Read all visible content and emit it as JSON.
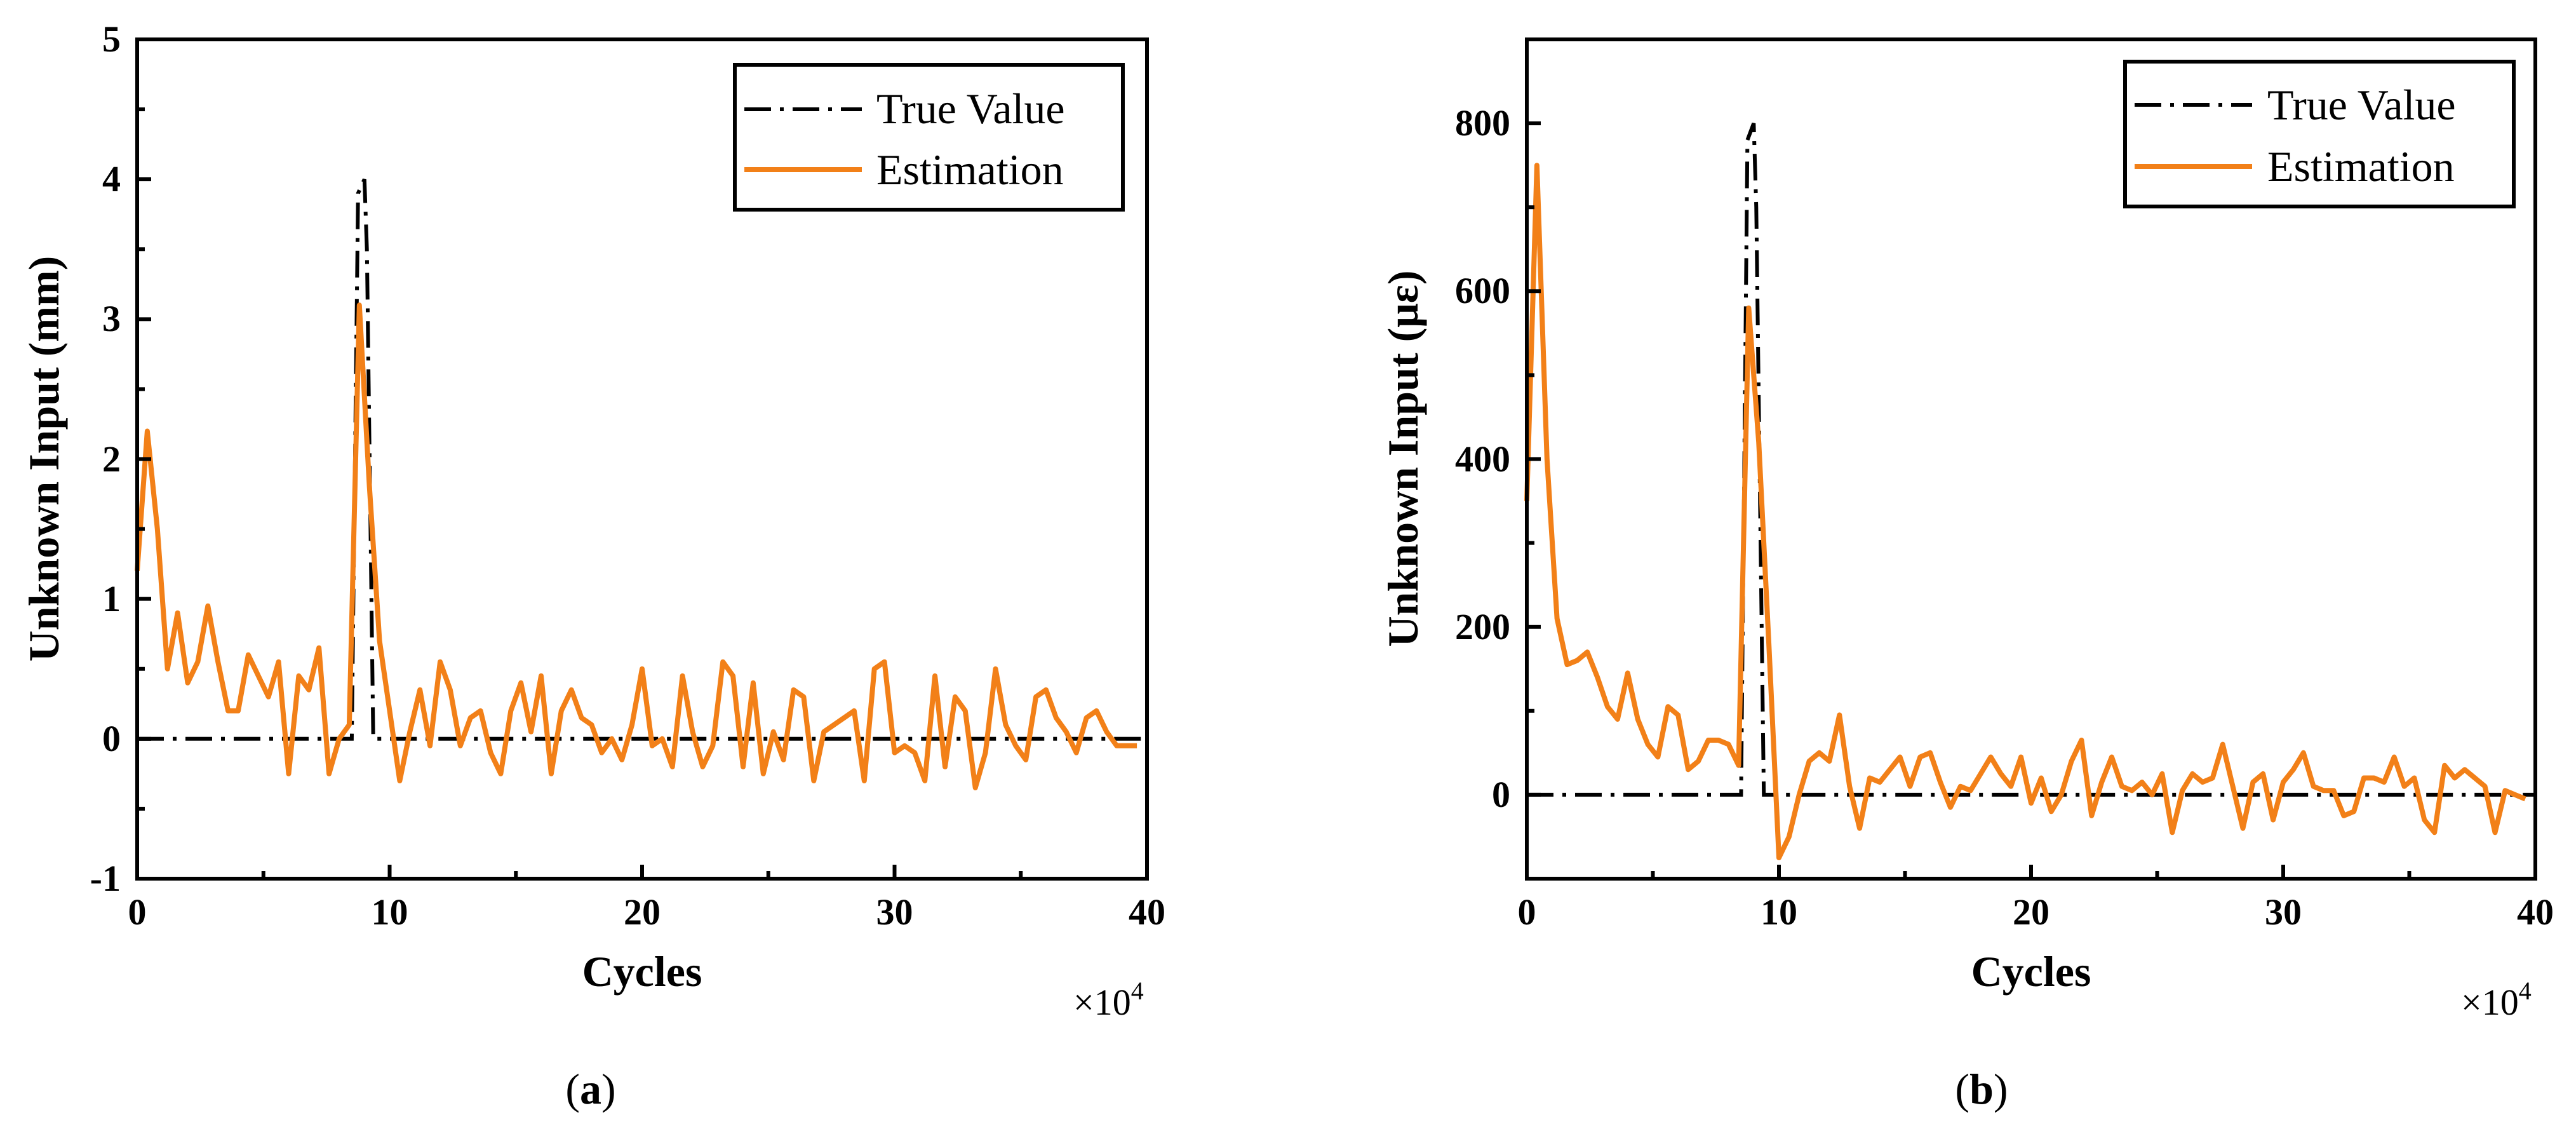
{
  "colors": {
    "true_value": "#000000",
    "estimation": "#F28018",
    "axis": "#000000"
  },
  "chart_data": [
    {
      "type": "line",
      "caption_letter": "a",
      "xlabel": "Cycles",
      "ylabel": "Unknown Input (mm)",
      "x_multiplier_base": "×10",
      "x_multiplier_exp": "4",
      "xlim": [
        0,
        40
      ],
      "ylim": [
        -1,
        5
      ],
      "xticks": [
        "0",
        "10",
        "20",
        "30",
        "40"
      ],
      "yticks": [
        "-1",
        "0",
        "1",
        "2",
        "3",
        "4",
        "5"
      ],
      "legend_position": "top-right",
      "series": [
        {
          "name": "True Value",
          "style": "dash-dot",
          "x": [
            0,
            8.5,
            8.75,
            9.0,
            9.1,
            9.35,
            40
          ],
          "y": [
            0,
            0,
            3.9,
            4.0,
            3.5,
            0,
            0
          ]
        },
        {
          "name": "Estimation",
          "style": "solid",
          "x": [
            0,
            0.4,
            0.8,
            1.2,
            1.6,
            2.0,
            2.4,
            2.8,
            3.2,
            3.6,
            4.0,
            4.4,
            4.8,
            5.2,
            5.6,
            6.0,
            6.4,
            6.8,
            7.2,
            7.6,
            8.0,
            8.4,
            8.8,
            9.2,
            9.6,
            10.0,
            10.4,
            10.8,
            11.2,
            11.6,
            12.0,
            12.4,
            12.8,
            13.2,
            13.6,
            14.0,
            14.4,
            14.8,
            15.2,
            15.6,
            16.0,
            16.4,
            16.8,
            17.2,
            17.6,
            18.0,
            18.4,
            18.8,
            19.2,
            19.6,
            20.0,
            20.4,
            20.8,
            21.2,
            21.6,
            22.0,
            22.4,
            22.8,
            23.2,
            23.6,
            24.0,
            24.4,
            24.8,
            25.2,
            25.6,
            26.0,
            26.4,
            26.8,
            27.2,
            27.6,
            28.0,
            28.4,
            28.8,
            29.2,
            29.6,
            30.0,
            30.4,
            30.8,
            31.2,
            31.6,
            32.0,
            32.4,
            32.8,
            33.2,
            33.6,
            34.0,
            34.4,
            34.8,
            35.2,
            35.6,
            36.0,
            36.4,
            36.8,
            37.2,
            37.6,
            38.0,
            38.4,
            38.8,
            39.2,
            39.6
          ],
          "y": [
            1.2,
            2.2,
            1.5,
            0.5,
            0.9,
            0.4,
            0.55,
            0.95,
            0.55,
            0.2,
            0.2,
            0.6,
            0.45,
            0.3,
            0.55,
            -0.25,
            0.45,
            0.35,
            0.65,
            -0.25,
            0.0,
            0.1,
            3.1,
            1.8,
            0.7,
            0.2,
            -0.3,
            0.05,
            0.35,
            -0.05,
            0.55,
            0.35,
            -0.05,
            0.15,
            0.2,
            -0.1,
            -0.25,
            0.2,
            0.4,
            0.05,
            0.45,
            -0.25,
            0.2,
            0.35,
            0.15,
            0.1,
            -0.1,
            0.0,
            -0.15,
            0.1,
            0.5,
            -0.05,
            0.0,
            -0.2,
            0.45,
            0.05,
            -0.2,
            -0.05,
            0.55,
            0.45,
            -0.2,
            0.4,
            -0.25,
            0.05,
            -0.15,
            0.35,
            0.3,
            -0.3,
            0.05,
            0.1,
            0.15,
            0.2,
            -0.3,
            0.5,
            0.55,
            -0.1,
            -0.05,
            -0.1,
            -0.3,
            0.45,
            -0.2,
            0.3,
            0.2,
            -0.35,
            -0.1,
            0.5,
            0.1,
            -0.05,
            -0.15,
            0.3,
            0.35,
            0.15,
            0.05,
            -0.1,
            0.15,
            0.2,
            0.05,
            -0.05,
            -0.05,
            -0.05
          ]
        }
      ]
    },
    {
      "type": "line",
      "caption_letter": "b",
      "xlabel": "Cycles",
      "ylabel": "Unknown Input (με)",
      "x_multiplier_base": "×10",
      "x_multiplier_exp": "4",
      "xlim": [
        0,
        40
      ],
      "ylim": [
        -100,
        900
      ],
      "xticks": [
        "0",
        "10",
        "20",
        "30",
        "40"
      ],
      "yticks": [
        "0",
        "200",
        "400",
        "600",
        "800"
      ],
      "ytick_values": [
        0,
        200,
        400,
        600,
        800
      ],
      "legend_position": "top-right",
      "series": [
        {
          "name": "True Value",
          "style": "dash-dot",
          "x": [
            0,
            8.5,
            8.75,
            9.0,
            9.1,
            9.4,
            40
          ],
          "y": [
            0,
            0,
            780,
            800,
            700,
            0,
            0
          ]
        },
        {
          "name": "Estimation",
          "style": "solid",
          "x": [
            0,
            0.4,
            0.8,
            1.2,
            1.6,
            2.0,
            2.4,
            2.8,
            3.2,
            3.6,
            4.0,
            4.4,
            4.8,
            5.2,
            5.6,
            6.0,
            6.4,
            6.8,
            7.2,
            7.6,
            8.0,
            8.4,
            8.8,
            9.2,
            9.6,
            10.0,
            10.4,
            10.8,
            11.2,
            11.6,
            12.0,
            12.4,
            12.8,
            13.2,
            13.6,
            14.0,
            14.4,
            14.8,
            15.2,
            15.6,
            16.0,
            16.4,
            16.8,
            17.2,
            17.6,
            18.0,
            18.4,
            18.8,
            19.2,
            19.6,
            20.0,
            20.4,
            20.8,
            21.2,
            21.6,
            22.0,
            22.4,
            22.8,
            23.2,
            23.6,
            24.0,
            24.4,
            24.8,
            25.2,
            25.6,
            26.0,
            26.4,
            26.8,
            27.2,
            27.6,
            28.0,
            28.4,
            28.8,
            29.2,
            29.6,
            30.0,
            30.4,
            30.8,
            31.2,
            31.6,
            32.0,
            32.4,
            32.8,
            33.2,
            33.6,
            34.0,
            34.4,
            34.8,
            35.2,
            35.6,
            36.0,
            36.4,
            36.8,
            37.2,
            37.6,
            38.0,
            38.4,
            38.8,
            39.2,
            39.6
          ],
          "y": [
            350,
            750,
            400,
            210,
            155,
            160,
            170,
            140,
            105,
            90,
            145,
            90,
            60,
            45,
            105,
            95,
            30,
            40,
            65,
            65,
            60,
            35,
            580,
            420,
            180,
            -75,
            -50,
            0,
            40,
            50,
            40,
            95,
            10,
            -40,
            20,
            15,
            30,
            45,
            10,
            45,
            50,
            15,
            -15,
            10,
            5,
            25,
            45,
            25,
            10,
            45,
            -10,
            20,
            -20,
            0,
            40,
            65,
            -25,
            15,
            45,
            10,
            5,
            15,
            0,
            25,
            -45,
            5,
            25,
            15,
            20,
            60,
            10,
            -40,
            15,
            25,
            -30,
            15,
            30,
            50,
            10,
            5,
            5,
            -25,
            -20,
            20,
            20,
            15,
            45,
            10,
            20,
            -30,
            -45,
            35,
            20,
            30,
            20,
            10,
            -45,
            5,
            0,
            -5
          ]
        }
      ]
    }
  ]
}
